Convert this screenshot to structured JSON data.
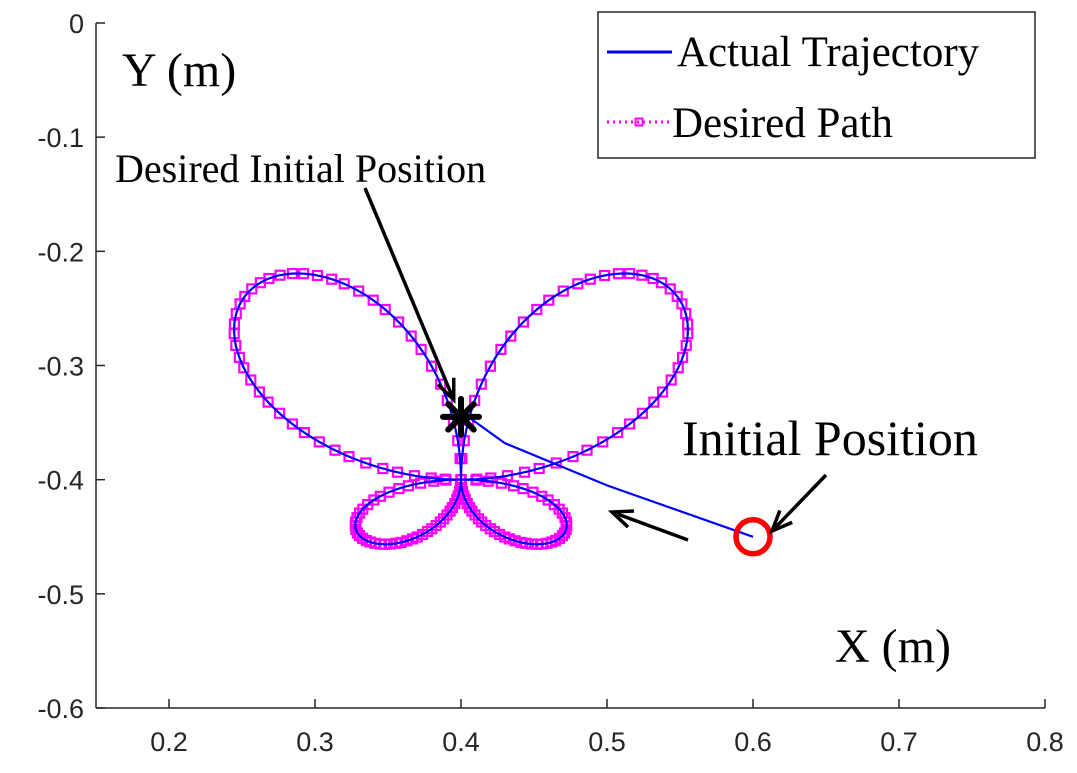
{
  "chart_data": {
    "type": "line",
    "title": "",
    "xlabel": "X (m)",
    "ylabel": "Y (m)",
    "xlim": [
      0.15,
      0.8
    ],
    "ylim": [
      -0.6,
      0
    ],
    "xticks": [
      "0.2",
      "0.3",
      "0.4",
      "0.5",
      "0.6",
      "0.7",
      "0.8"
    ],
    "yticks": [
      "0",
      "-0.1",
      "-0.2",
      "-0.3",
      "-0.4",
      "-0.5",
      "-0.6"
    ],
    "legend_position": "top-right",
    "grid": false,
    "series": [
      {
        "name": "Actual Trajectory",
        "color": "#0000ff",
        "style": "solid",
        "note": "starts at the initial position and converges onto the desired butterfly-shaped path",
        "start": [
          0.6,
          -0.45
        ],
        "approach": [
          [
            0.6,
            -0.45
          ],
          [
            0.5,
            -0.405
          ],
          [
            0.43,
            -0.368
          ],
          [
            0.405,
            -0.345
          ]
        ]
      },
      {
        "name": "Desired Path",
        "color": "#ff00ff",
        "style": "dotted-square-markers",
        "curve": "butterfly",
        "center": [
          0.4,
          -0.4
        ],
        "param_a": 0.125,
        "param_b": 0.2,
        "marker_count": 180
      }
    ],
    "points": [
      {
        "name": "Desired Initial Position",
        "x": 0.4,
        "y": -0.345,
        "marker": "asterisk",
        "color": "#000000"
      },
      {
        "name": "Initial Position",
        "x": 0.6,
        "y": -0.45,
        "marker": "circle",
        "color": "#ff0000"
      }
    ],
    "annotations": [
      {
        "text": "Desired Initial Position",
        "arrow_to": [
          0.395,
          -0.33
        ]
      },
      {
        "text": "Initial Position",
        "arrow_to": [
          0.613,
          -0.445
        ]
      }
    ]
  },
  "legend": {
    "items": [
      "Actual Trajectory",
      "Desired Path"
    ]
  },
  "colors": {
    "actual": "#0000ff",
    "desired": "#ff00ff",
    "target_marker": "#000000",
    "start_marker": "#ff0000"
  }
}
